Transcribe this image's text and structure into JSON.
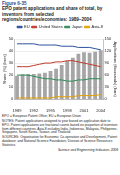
{
  "chart_data": {
    "type": "bar",
    "figure_label": "Figure 6-35",
    "title": "EPO patent applications and share of total, by inventors from selected regions/countries/economies: 1989–2004",
    "categories": [
      "1989",
      null,
      null,
      "1992",
      null,
      null,
      "1995",
      null,
      null,
      "1998",
      null,
      null,
      "2001",
      null,
      null,
      "2004"
    ],
    "bars": {
      "values": [
        58,
        62,
        63,
        63,
        64,
        66,
        70,
        76,
        85,
        95,
        103,
        113,
        117,
        116,
        118,
        122
      ],
      "color": "#a6a6a6",
      "axis": "y2"
    },
    "series": [
      {
        "name": "EU",
        "color": "#2b4f9e",
        "type": "line",
        "axis": "y",
        "values": [
          46,
          46,
          46,
          46,
          45,
          45,
          45,
          45,
          44,
          44,
          44,
          43,
          43,
          43,
          42,
          41
        ]
      },
      {
        "name": "United States",
        "color": "#c0392b",
        "type": "line",
        "axis": "y",
        "values": [
          27,
          27,
          27,
          28,
          29,
          30,
          30,
          31,
          31,
          32,
          32,
          31,
          30,
          29,
          28,
          27
        ]
      },
      {
        "name": "Japan",
        "color": "#2e8b57",
        "type": "line",
        "axis": "y",
        "values": [
          20,
          20,
          20,
          19,
          18,
          17,
          17,
          16,
          16,
          15,
          15,
          16,
          16,
          17,
          17,
          17
        ]
      },
      {
        "name": "Asia-8",
        "color": "#e6a000",
        "type": "line",
        "axis": "y",
        "values": [
          1,
          1,
          1,
          1,
          1,
          1,
          1,
          2,
          2,
          2,
          2,
          3,
          3,
          3,
          3,
          4
        ]
      }
    ],
    "ylabel": "Share (%) (lines)",
    "y2label": "Applications (thousands) (bars)",
    "ylim": [
      0,
      50
    ],
    "yticks": [
      0,
      10,
      20,
      30,
      40,
      50
    ],
    "y2lim": [
      0,
      150
    ],
    "y2ticks": [
      0,
      30,
      60,
      90,
      120,
      150
    ],
    "grid": true,
    "legend": "top",
    "notes": [
      "EPO = European Patent Office; EU = European Union",
      "NOTES: Patent applications assigned to year based on application date to EPO. Patent applications are fractional counts based on proportion of inventors from different countries. Asia-8 includes India, Indonesia, Malaysia, Philippines, Singapore, South Korea, Taiwan, and Thailand.",
      "SOURCES: Organisation for Economic Co-operation and Development, Patent database; and National Science Foundation, Division of Science Resources Statistics."
    ],
    "credit": "Science and Engineering Indicators 2008"
  }
}
